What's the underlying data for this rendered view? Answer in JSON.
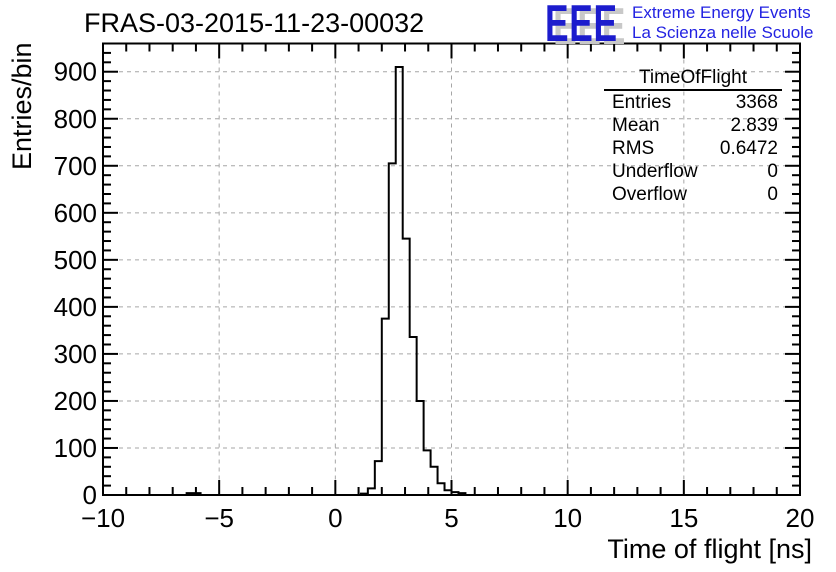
{
  "title": "FRAS-03-2015-11-23-00032",
  "logo": {
    "wordmark": "EEE",
    "line1": "Extreme Energy Events",
    "line2": "La Scienza nelle Scuole",
    "wordmark_color": "#1c1ccd",
    "text_color": "#2222e2",
    "shadow_color": "#c8c8c8"
  },
  "stats": {
    "title": "TimeOfFlight",
    "rows": [
      {
        "label": "Entries",
        "value": "3368"
      },
      {
        "label": "Mean",
        "value": "2.839"
      },
      {
        "label": "RMS",
        "value": "0.6472"
      },
      {
        "label": "Underflow",
        "value": "0"
      },
      {
        "label": "Overflow",
        "value": "0"
      }
    ]
  },
  "chart_data": {
    "type": "bar",
    "subtype": "step-histogram",
    "title": "FRAS-03-2015-11-23-00032",
    "xlabel": "Time of flight [ns]",
    "ylabel": "Entries/bin",
    "xlim": [
      -10,
      20
    ],
    "ylim": [
      0,
      960
    ],
    "x_major_ticks": [
      -10,
      -5,
      0,
      5,
      10,
      15,
      20
    ],
    "x_minor_step": 1,
    "y_major_ticks": [
      0,
      100,
      200,
      300,
      400,
      500,
      600,
      700,
      800,
      900
    ],
    "y_minor_step": 20,
    "grid": "dashed-on-major-ticks",
    "grid_color": "#a6a6a6",
    "line_color": "#000000",
    "bin_width": 0.3,
    "bins_nonzero": [
      {
        "x": -6.4,
        "count": 4
      },
      {
        "x": -6.1,
        "count": 4
      },
      {
        "x": 1.1,
        "count": 3
      },
      {
        "x": 1.4,
        "count": 14
      },
      {
        "x": 1.7,
        "count": 72
      },
      {
        "x": 2.0,
        "count": 375
      },
      {
        "x": 2.3,
        "count": 705
      },
      {
        "x": 2.6,
        "count": 910
      },
      {
        "x": 2.9,
        "count": 545
      },
      {
        "x": 3.2,
        "count": 336
      },
      {
        "x": 3.5,
        "count": 200
      },
      {
        "x": 3.8,
        "count": 95
      },
      {
        "x": 4.1,
        "count": 60
      },
      {
        "x": 4.4,
        "count": 25
      },
      {
        "x": 4.7,
        "count": 10
      },
      {
        "x": 5.0,
        "count": 6
      },
      {
        "x": 5.3,
        "count": 4
      }
    ]
  }
}
